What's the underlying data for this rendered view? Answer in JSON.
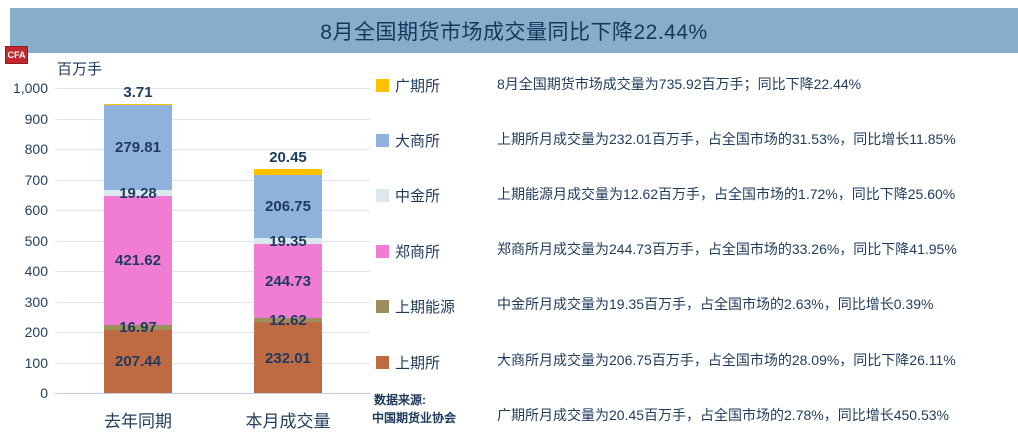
{
  "title": "8月全国期货市场成交量同比下降22.44%",
  "logo_text": "CFA",
  "unit_label": "百万手",
  "source": {
    "line1": "数据来源:",
    "line2": "中国期货业协会"
  },
  "colors": {
    "header_bg": "#87AEC9",
    "title_text": "#17365D",
    "body_text": "#1F3B5C",
    "gridline": "#DCE4F2",
    "logo_bg": "#C2272F"
  },
  "chart_data": {
    "type": "bar",
    "stacked": true,
    "unit": "百万手",
    "categories": [
      "去年同期",
      "本月成交量"
    ],
    "series": [
      {
        "name": "上期所",
        "color": "#BE6B44",
        "values": [
          207.44,
          232.01
        ]
      },
      {
        "name": "上期能源",
        "color": "#9C8F5B",
        "values": [
          16.97,
          12.62
        ]
      },
      {
        "name": "郑商所",
        "color": "#F07CD4",
        "values": [
          421.62,
          244.73
        ]
      },
      {
        "name": "中金所",
        "color": "#D9E9EE",
        "values": [
          19.28,
          19.35
        ]
      },
      {
        "name": "大商所",
        "color": "#8FB2DC",
        "values": [
          279.81,
          206.75
        ]
      },
      {
        "name": "广期所",
        "color": "#FFC000",
        "values": [
          3.71,
          20.45
        ]
      }
    ],
    "totals": [
      948.83,
      735.92
    ],
    "ylim": [
      0,
      1000
    ],
    "ytick_step": 100,
    "ytick_labels": [
      "0",
      "100",
      "200",
      "300",
      "400",
      "500",
      "600",
      "700",
      "800",
      "900",
      "1,000"
    ],
    "grid": true,
    "legend_position": "right"
  },
  "legend": [
    {
      "label": "广期所",
      "color": "#FFC000"
    },
    {
      "label": "大商所",
      "color": "#8FB2DC"
    },
    {
      "label": "中金所",
      "color": "#D9E9EE"
    },
    {
      "label": "郑商所",
      "color": "#F07CD4"
    },
    {
      "label": "上期能源",
      "color": "#9C8F5B"
    },
    {
      "label": "上期所",
      "color": "#BE6B44"
    }
  ],
  "annotations": [
    "8月全国期货市场成交量为735.92百万手；同比下降22.44%",
    "上期所月成交量为232.01百万手，占全国市场的31.53%，同比增长11.85%",
    "上期能源月成交量为12.62百万手，占全国市场的1.72%，同比下降25.60%",
    "郑商所月成交量为244.73百万手，占全国市场的33.26%，同比下降41.95%",
    "中金所月成交量为19.35百万手，占全国市场的2.63%，同比增长0.39%",
    "大商所月成交量为206.75百万手，占全国市场的28.09%，同比下降26.11%",
    "广期所月成交量为20.45百万手，占全国市场的2.78%，同比增长450.53%"
  ]
}
